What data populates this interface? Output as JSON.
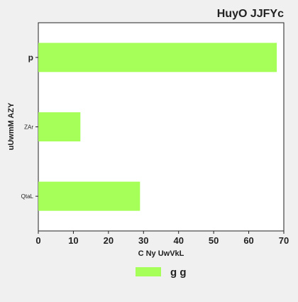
{
  "chart_data": {
    "type": "bar",
    "orientation": "horizontal",
    "title": "HuyO JJFYc",
    "xlabel": "C Ny UwVkL",
    "ylabel": "uUwmM  AZY",
    "categories": [
      "p",
      "ZAr",
      "QtaL"
    ],
    "series": [
      {
        "name": "g g",
        "values": [
          68,
          12,
          29
        ]
      }
    ],
    "xlim": [
      0,
      70
    ],
    "xticks": [
      0,
      10,
      20,
      30,
      40,
      50,
      60,
      70
    ],
    "grid": false,
    "legend_position": "bottom",
    "colors": {
      "bar": "#a6ff59",
      "background": "#f0f0f0",
      "plot_background": "#ffffff"
    }
  }
}
